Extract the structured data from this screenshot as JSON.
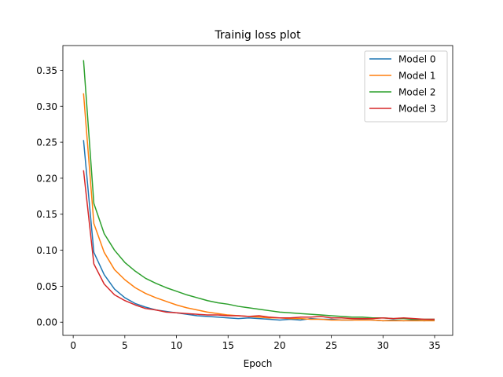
{
  "chart_data": {
    "type": "line",
    "title": "Trainig loss plot",
    "xlabel": "Epoch",
    "ylabel": "",
    "xlim": [
      -1,
      36.75
    ],
    "ylim": [
      -0.0183,
      0.3843
    ],
    "xticks": [
      0,
      5,
      10,
      15,
      20,
      25,
      30,
      35
    ],
    "yticks": [
      0.0,
      0.05,
      0.1,
      0.15,
      0.2,
      0.25,
      0.3,
      0.35
    ],
    "grid": false,
    "legend_position": "top-right",
    "x": [
      1,
      2,
      3,
      4,
      5,
      6,
      7,
      8,
      9,
      10,
      11,
      12,
      13,
      14,
      15,
      16,
      17,
      18,
      19,
      20,
      21,
      22,
      23,
      24,
      25,
      26,
      27,
      28,
      29,
      30,
      31,
      32,
      33,
      34,
      35
    ],
    "series": [
      {
        "name": "Model 0",
        "color": "#1f77b4",
        "values": [
          0.253,
          0.097,
          0.066,
          0.046,
          0.034,
          0.026,
          0.021,
          0.017,
          0.015,
          0.013,
          0.011,
          0.009,
          0.008,
          0.007,
          0.006,
          0.005,
          0.006,
          0.005,
          0.004,
          0.003,
          0.004,
          0.003,
          0.005,
          0.004,
          0.004,
          0.003,
          0.003,
          0.004,
          0.003,
          0.002,
          0.003,
          0.002,
          0.003,
          0.002,
          0.003
        ]
      },
      {
        "name": "Model 1",
        "color": "#ff7f0e",
        "values": [
          0.318,
          0.137,
          0.097,
          0.073,
          0.059,
          0.048,
          0.04,
          0.034,
          0.029,
          0.024,
          0.02,
          0.017,
          0.014,
          0.012,
          0.01,
          0.009,
          0.008,
          0.007,
          0.006,
          0.006,
          0.005,
          0.005,
          0.004,
          0.004,
          0.003,
          0.003,
          0.003,
          0.003,
          0.003,
          0.002,
          0.002,
          0.002,
          0.002,
          0.002,
          0.002
        ]
      },
      {
        "name": "Model 2",
        "color": "#2ca02c",
        "values": [
          0.364,
          0.165,
          0.123,
          0.1,
          0.083,
          0.071,
          0.061,
          0.054,
          0.048,
          0.043,
          0.038,
          0.034,
          0.03,
          0.027,
          0.025,
          0.022,
          0.02,
          0.018,
          0.016,
          0.014,
          0.013,
          0.012,
          0.011,
          0.01,
          0.009,
          0.008,
          0.007,
          0.007,
          0.006,
          0.006,
          0.005,
          0.005,
          0.004,
          0.004,
          0.004
        ]
      },
      {
        "name": "Model 3",
        "color": "#d62728",
        "values": [
          0.211,
          0.081,
          0.053,
          0.038,
          0.03,
          0.024,
          0.019,
          0.017,
          0.014,
          0.013,
          0.012,
          0.011,
          0.01,
          0.01,
          0.009,
          0.009,
          0.008,
          0.009,
          0.007,
          0.006,
          0.006,
          0.007,
          0.007,
          0.008,
          0.006,
          0.006,
          0.005,
          0.005,
          0.005,
          0.006,
          0.005,
          0.006,
          0.005,
          0.004,
          0.004
        ]
      }
    ]
  }
}
